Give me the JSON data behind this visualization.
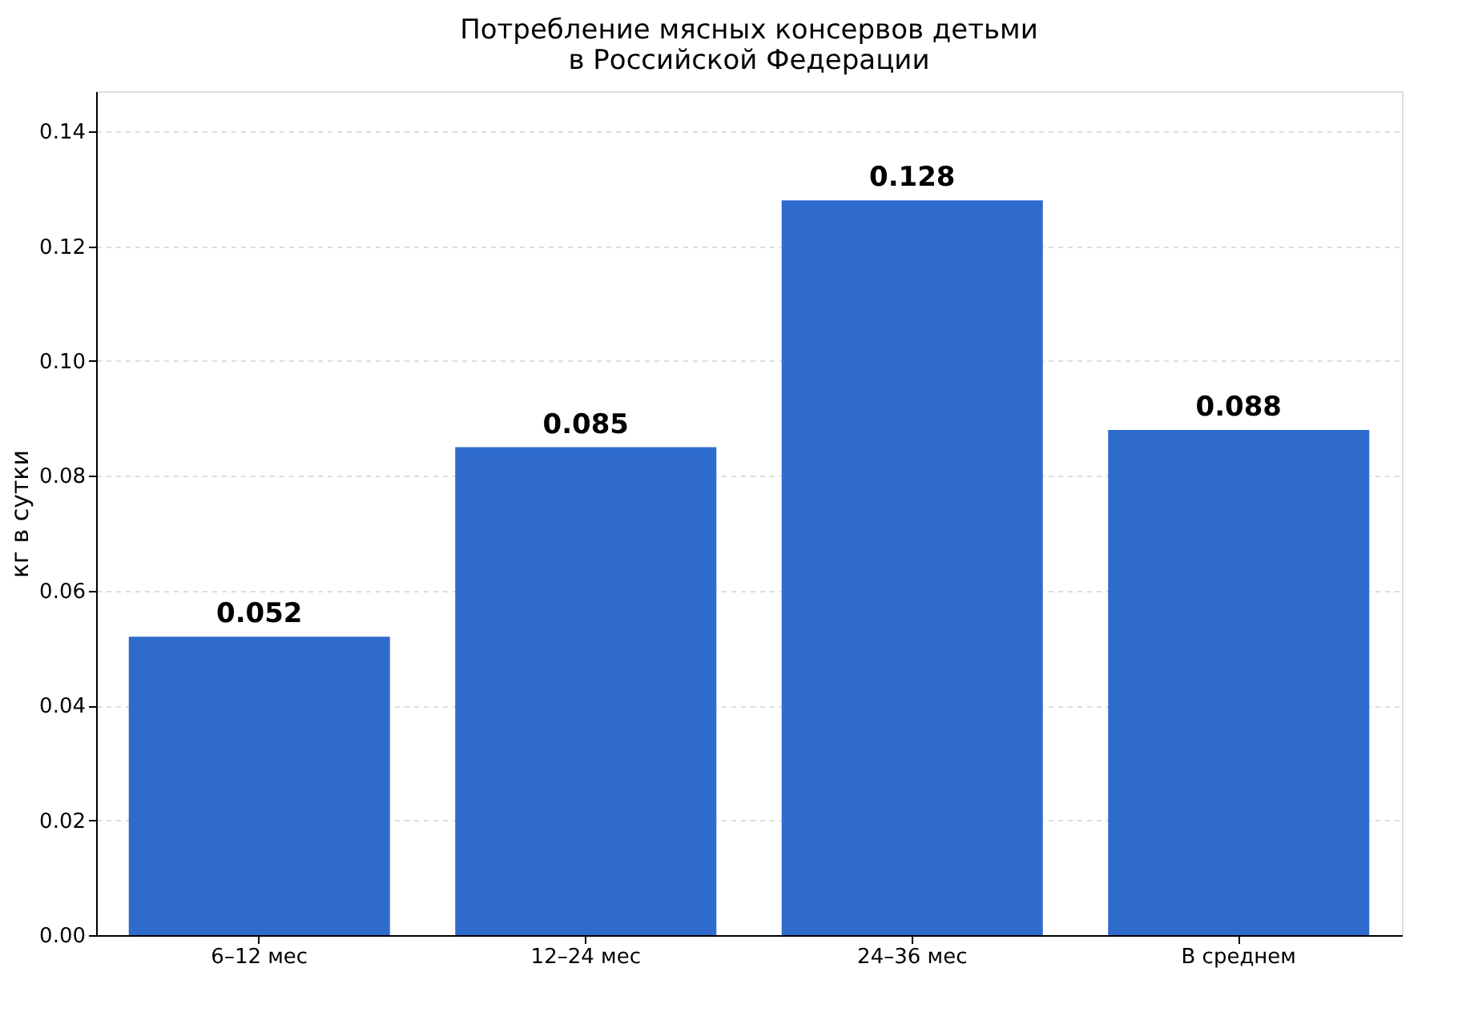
{
  "chart_data": {
    "type": "bar",
    "title": [
      "Потребление мясных консервов детьми",
      "в Российской Федерации"
    ],
    "ylabel": "кг в сутки",
    "categories": [
      "6–12 мес",
      "12–24 мес",
      "24–36 мес",
      "В среднем"
    ],
    "values": [
      0.052,
      0.085,
      0.128,
      0.088
    ],
    "color": "#2e6bcc",
    "ylim": [
      0,
      0.147
    ],
    "yticks": [
      {
        "value": 0,
        "label": "0.00"
      },
      0.02,
      0.04,
      0.06,
      0.08,
      {
        "value": 0.1,
        "label": "0.10"
      },
      0.12,
      0.14
    ],
    "grid": "y",
    "data_labels": true
  }
}
